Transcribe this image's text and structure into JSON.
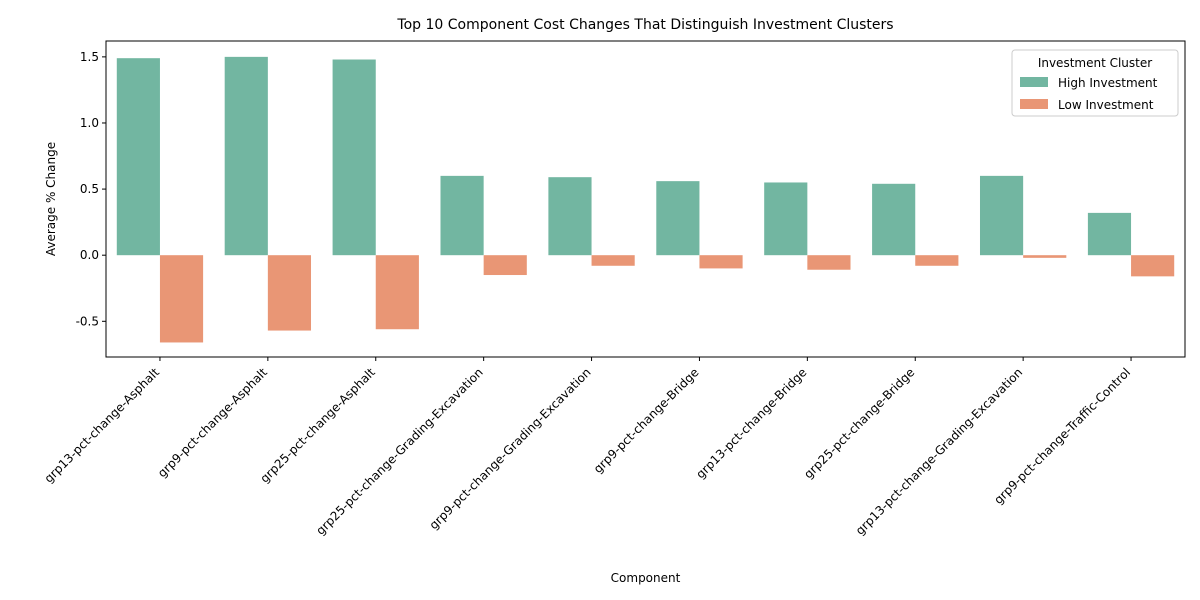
{
  "chart_data": {
    "type": "bar",
    "title": "Top 10 Component Cost Changes That Distinguish Investment Clusters",
    "xlabel": "Component",
    "ylabel": "Average % Change",
    "ylim": [
      -0.77,
      1.62
    ],
    "yticks": [
      "-0.5",
      "0.0",
      "0.5",
      "1.0",
      "1.5"
    ],
    "grid": false,
    "legend_position": "top-right",
    "legend_title": "Investment Cluster",
    "categories": [
      "grp13-pct-change-Asphalt",
      "grp9-pct-change-Asphalt",
      "grp25-pct-change-Asphalt",
      "grp25-pct-change-Grading-Excavation",
      "grp9-pct-change-Grading-Excavation",
      "grp9-pct-change-Bridge",
      "grp13-pct-change-Bridge",
      "grp25-pct-change-Bridge",
      "grp13-pct-change-Grading-Excavation",
      "grp9-pct-change-Traffic-Control"
    ],
    "series": [
      {
        "name": "High Investment",
        "color": "#72b6a1",
        "values": [
          1.49,
          1.5,
          1.48,
          0.6,
          0.59,
          0.56,
          0.55,
          0.54,
          0.6,
          0.32
        ]
      },
      {
        "name": "Low Investment",
        "color": "#e99675",
        "values": [
          -0.66,
          -0.57,
          -0.56,
          -0.15,
          -0.08,
          -0.1,
          -0.11,
          -0.08,
          -0.02,
          -0.16
        ]
      }
    ]
  }
}
